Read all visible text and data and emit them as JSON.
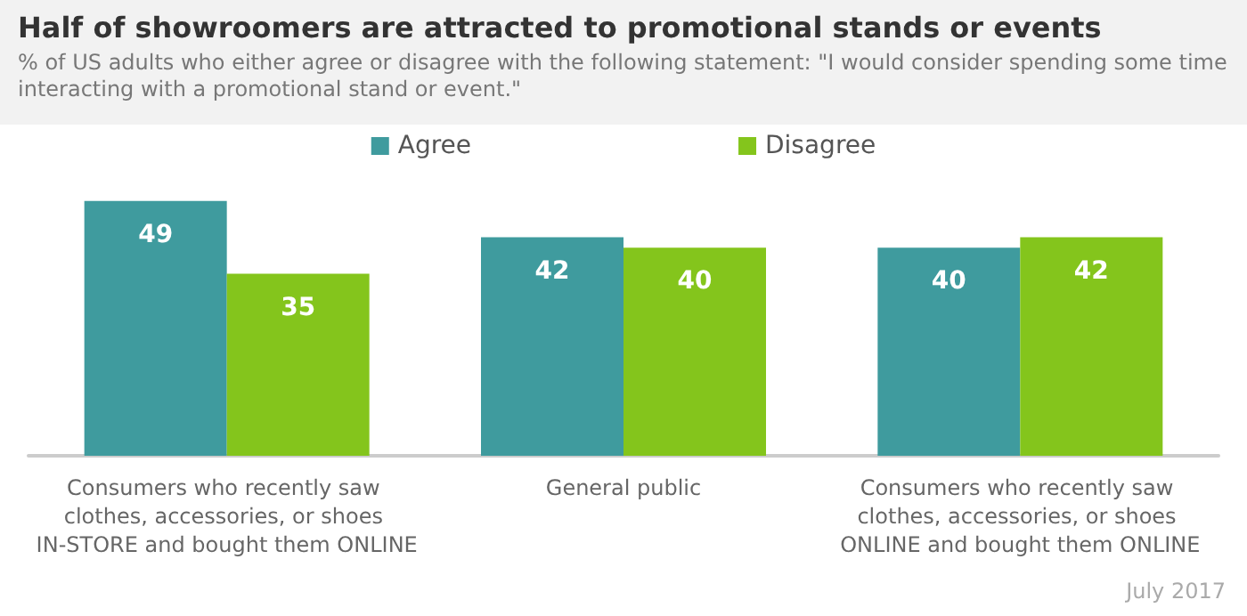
{
  "chart_data": {
    "type": "bar",
    "title": "Half of showroomers are attracted to promotional stands or events",
    "subtitle": "% of US adults who either agree or disagree with the following statement: \"I would consider spending some time interacting with a promotional stand or event.\"",
    "categories": [
      "Consumers who recently saw clothes, accessories, or shoes IN-STORE and bought them ONLINE",
      "General public",
      "Consumers who recently saw clothes, accessories, or shoes ONLINE and bought them ONLINE"
    ],
    "series": [
      {
        "name": "Agree",
        "color": "#3f9b9e",
        "values": [
          49,
          42,
          40
        ]
      },
      {
        "name": "Disagree",
        "color": "#84c51c",
        "values": [
          35,
          40,
          42
        ]
      }
    ],
    "data_labels": true,
    "legend": "top",
    "grid": false,
    "annotations": [
      "July 2017"
    ]
  }
}
